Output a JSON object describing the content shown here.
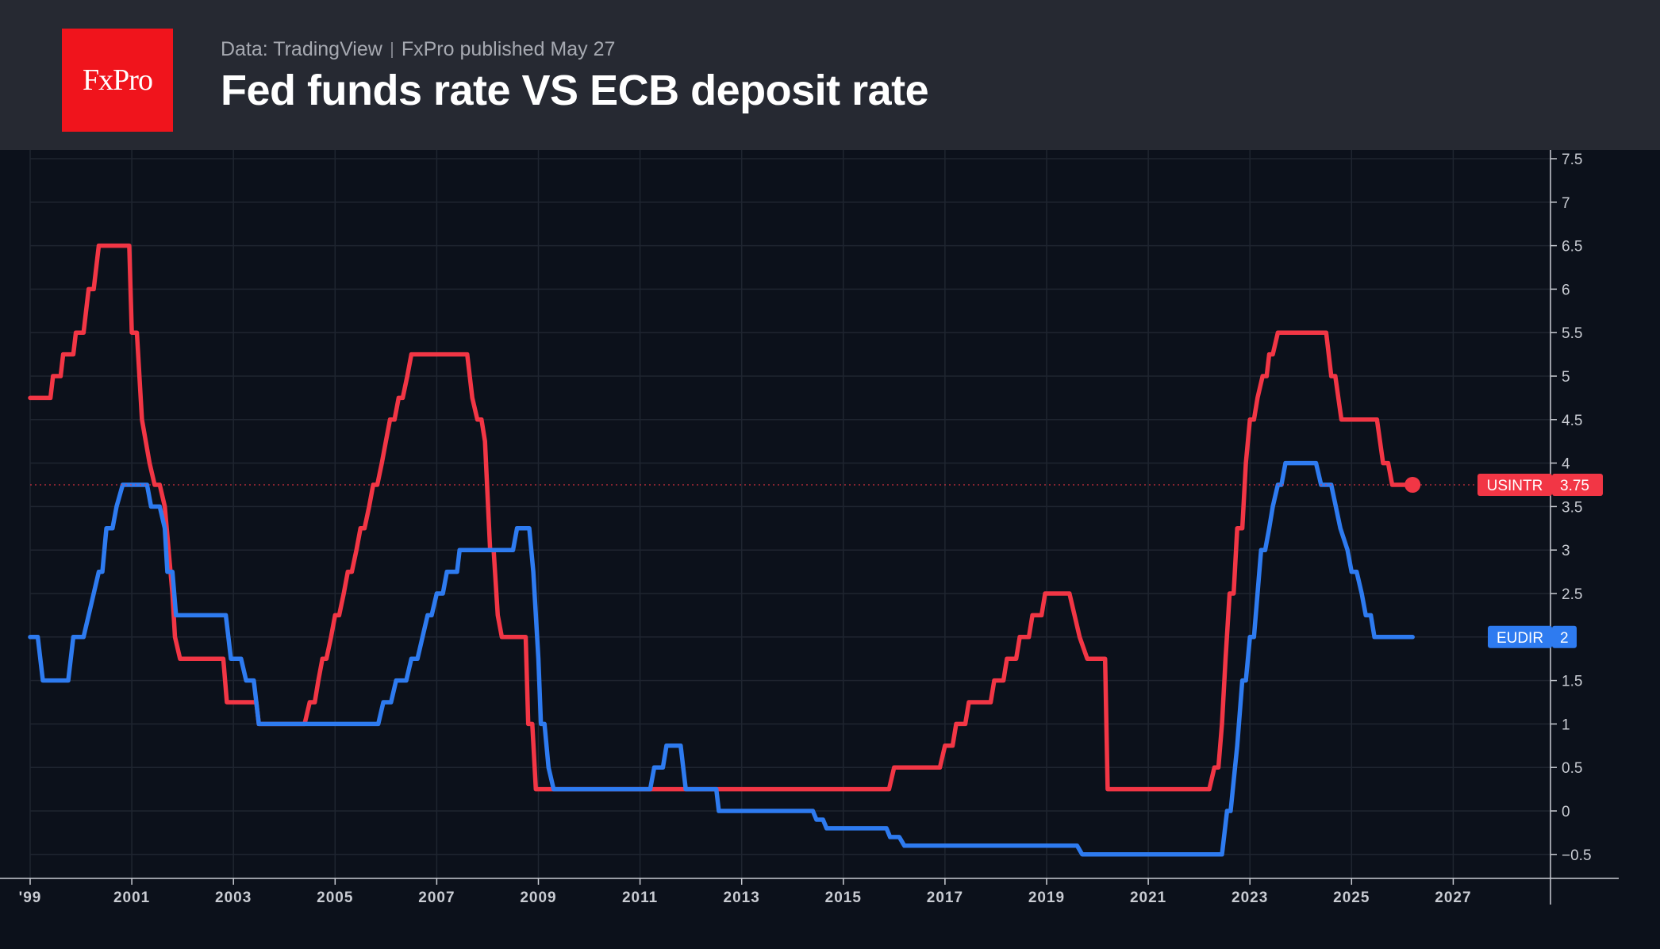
{
  "header": {
    "logo_text": "FxPro",
    "source": "Data: TradingView",
    "published": "FxPro published May 27",
    "title": "Fed funds rate VS ECB deposit rate"
  },
  "colors": {
    "background": "#0c111b",
    "header_bg": "#262932",
    "logo_bg": "#f0141c",
    "usintr": "#f23645",
    "eudir": "#2e7bf0"
  },
  "chart_data": {
    "type": "line",
    "title": "Fed funds rate VS ECB deposit rate",
    "x_ticks": [
      "'99",
      "2001",
      "2003",
      "2005",
      "2007",
      "2009",
      "2011",
      "2013",
      "2015",
      "2017",
      "2019",
      "2021",
      "2023",
      "2025",
      "2027"
    ],
    "y_ticks": [
      "7.5",
      "7",
      "6.5",
      "6",
      "5.5",
      "5",
      "4.5",
      "4",
      "3.5",
      "3",
      "2.5",
      "2",
      "1.5",
      "1",
      "0.5",
      "0",
      "−0.5"
    ],
    "xlim": [
      1999.0,
      2028.9
    ],
    "ylim": [
      -0.75,
      7.6
    ],
    "grid": true,
    "series": [
      {
        "name": "USINTR",
        "last_value": "3.75",
        "color": "#f23645",
        "points": [
          [
            1999.0,
            4.75
          ],
          [
            1999.4,
            4.75
          ],
          [
            1999.45,
            5.0
          ],
          [
            1999.6,
            5.0
          ],
          [
            1999.65,
            5.25
          ],
          [
            1999.85,
            5.25
          ],
          [
            1999.9,
            5.5
          ],
          [
            2000.05,
            5.5
          ],
          [
            2000.15,
            6.0
          ],
          [
            2000.25,
            6.0
          ],
          [
            2000.35,
            6.5
          ],
          [
            2000.95,
            6.5
          ],
          [
            2001.0,
            5.5
          ],
          [
            2001.1,
            5.5
          ],
          [
            2001.2,
            4.5
          ],
          [
            2001.35,
            4.0
          ],
          [
            2001.45,
            3.75
          ],
          [
            2001.55,
            3.75
          ],
          [
            2001.65,
            3.5
          ],
          [
            2001.8,
            2.5
          ],
          [
            2001.85,
            2.0
          ],
          [
            2001.95,
            1.75
          ],
          [
            2002.8,
            1.75
          ],
          [
            2002.87,
            1.25
          ],
          [
            2003.45,
            1.25
          ],
          [
            2003.5,
            1.0
          ],
          [
            2004.4,
            1.0
          ],
          [
            2004.5,
            1.25
          ],
          [
            2004.6,
            1.25
          ],
          [
            2004.67,
            1.5
          ],
          [
            2004.75,
            1.75
          ],
          [
            2004.83,
            1.75
          ],
          [
            2004.92,
            2.0
          ],
          [
            2005.0,
            2.25
          ],
          [
            2005.08,
            2.25
          ],
          [
            2005.17,
            2.5
          ],
          [
            2005.25,
            2.75
          ],
          [
            2005.33,
            2.75
          ],
          [
            2005.42,
            3.0
          ],
          [
            2005.5,
            3.25
          ],
          [
            2005.58,
            3.25
          ],
          [
            2005.67,
            3.5
          ],
          [
            2005.75,
            3.75
          ],
          [
            2005.83,
            3.75
          ],
          [
            2005.92,
            4.0
          ],
          [
            2006.0,
            4.25
          ],
          [
            2006.08,
            4.5
          ],
          [
            2006.17,
            4.5
          ],
          [
            2006.25,
            4.75
          ],
          [
            2006.33,
            4.75
          ],
          [
            2006.42,
            5.0
          ],
          [
            2006.5,
            5.25
          ],
          [
            2007.6,
            5.25
          ],
          [
            2007.7,
            4.75
          ],
          [
            2007.8,
            4.5
          ],
          [
            2007.88,
            4.5
          ],
          [
            2007.95,
            4.25
          ],
          [
            2008.05,
            3.0
          ],
          [
            2008.12,
            3.0
          ],
          [
            2008.2,
            2.25
          ],
          [
            2008.28,
            2.0
          ],
          [
            2008.75,
            2.0
          ],
          [
            2008.8,
            1.0
          ],
          [
            2008.88,
            1.0
          ],
          [
            2008.95,
            0.25
          ],
          [
            2015.9,
            0.25
          ],
          [
            2016.0,
            0.5
          ],
          [
            2016.9,
            0.5
          ],
          [
            2017.0,
            0.75
          ],
          [
            2017.15,
            0.75
          ],
          [
            2017.22,
            1.0
          ],
          [
            2017.4,
            1.0
          ],
          [
            2017.47,
            1.25
          ],
          [
            2017.9,
            1.25
          ],
          [
            2017.97,
            1.5
          ],
          [
            2018.15,
            1.5
          ],
          [
            2018.22,
            1.75
          ],
          [
            2018.4,
            1.75
          ],
          [
            2018.47,
            2.0
          ],
          [
            2018.65,
            2.0
          ],
          [
            2018.72,
            2.25
          ],
          [
            2018.9,
            2.25
          ],
          [
            2018.97,
            2.5
          ],
          [
            2019.45,
            2.5
          ],
          [
            2019.55,
            2.25
          ],
          [
            2019.65,
            2.0
          ],
          [
            2019.8,
            1.75
          ],
          [
            2020.15,
            1.75
          ],
          [
            2020.2,
            0.25
          ],
          [
            2022.2,
            0.25
          ],
          [
            2022.3,
            0.5
          ],
          [
            2022.38,
            0.5
          ],
          [
            2022.45,
            1.0
          ],
          [
            2022.52,
            1.75
          ],
          [
            2022.6,
            2.5
          ],
          [
            2022.68,
            2.5
          ],
          [
            2022.75,
            3.25
          ],
          [
            2022.85,
            3.25
          ],
          [
            2022.92,
            4.0
          ],
          [
            2023.0,
            4.5
          ],
          [
            2023.08,
            4.5
          ],
          [
            2023.15,
            4.75
          ],
          [
            2023.25,
            5.0
          ],
          [
            2023.33,
            5.0
          ],
          [
            2023.38,
            5.25
          ],
          [
            2023.45,
            5.25
          ],
          [
            2023.55,
            5.5
          ],
          [
            2024.5,
            5.5
          ],
          [
            2024.6,
            5.0
          ],
          [
            2024.68,
            5.0
          ],
          [
            2024.8,
            4.5
          ],
          [
            2025.5,
            4.5
          ],
          [
            2025.62,
            4.0
          ],
          [
            2025.72,
            4.0
          ],
          [
            2025.8,
            3.75
          ],
          [
            2026.2,
            3.75
          ]
        ]
      },
      {
        "name": "EUDIR",
        "last_value": "2",
        "color": "#2e7bf0",
        "points": [
          [
            1999.0,
            2.0
          ],
          [
            1999.15,
            2.0
          ],
          [
            1999.25,
            1.5
          ],
          [
            1999.75,
            1.5
          ],
          [
            1999.85,
            2.0
          ],
          [
            2000.05,
            2.0
          ],
          [
            2000.15,
            2.25
          ],
          [
            2000.25,
            2.5
          ],
          [
            2000.35,
            2.75
          ],
          [
            2000.42,
            2.75
          ],
          [
            2000.5,
            3.25
          ],
          [
            2000.62,
            3.25
          ],
          [
            2000.7,
            3.5
          ],
          [
            2000.82,
            3.75
          ],
          [
            2001.3,
            3.75
          ],
          [
            2001.38,
            3.5
          ],
          [
            2001.55,
            3.5
          ],
          [
            2001.65,
            3.25
          ],
          [
            2001.7,
            2.75
          ],
          [
            2001.8,
            2.75
          ],
          [
            2001.87,
            2.25
          ],
          [
            2002.85,
            2.25
          ],
          [
            2002.95,
            1.75
          ],
          [
            2003.15,
            1.75
          ],
          [
            2003.25,
            1.5
          ],
          [
            2003.4,
            1.5
          ],
          [
            2003.5,
            1.0
          ],
          [
            2005.85,
            1.0
          ],
          [
            2005.95,
            1.25
          ],
          [
            2006.1,
            1.25
          ],
          [
            2006.2,
            1.5
          ],
          [
            2006.4,
            1.5
          ],
          [
            2006.5,
            1.75
          ],
          [
            2006.62,
            1.75
          ],
          [
            2006.72,
            2.0
          ],
          [
            2006.82,
            2.25
          ],
          [
            2006.9,
            2.25
          ],
          [
            2007.0,
            2.5
          ],
          [
            2007.12,
            2.5
          ],
          [
            2007.2,
            2.75
          ],
          [
            2007.4,
            2.75
          ],
          [
            2007.45,
            3.0
          ],
          [
            2008.5,
            3.0
          ],
          [
            2008.58,
            3.25
          ],
          [
            2008.82,
            3.25
          ],
          [
            2008.9,
            2.75
          ],
          [
            2009.0,
            1.75
          ],
          [
            2009.05,
            1.0
          ],
          [
            2009.12,
            1.0
          ],
          [
            2009.2,
            0.5
          ],
          [
            2009.3,
            0.25
          ],
          [
            2011.2,
            0.25
          ],
          [
            2011.28,
            0.5
          ],
          [
            2011.45,
            0.5
          ],
          [
            2011.52,
            0.75
          ],
          [
            2011.8,
            0.75
          ],
          [
            2011.9,
            0.25
          ],
          [
            2012.5,
            0.25
          ],
          [
            2012.55,
            0.0
          ],
          [
            2014.4,
            0.0
          ],
          [
            2014.47,
            -0.1
          ],
          [
            2014.6,
            -0.1
          ],
          [
            2014.67,
            -0.2
          ],
          [
            2015.85,
            -0.2
          ],
          [
            2015.92,
            -0.3
          ],
          [
            2016.1,
            -0.3
          ],
          [
            2016.2,
            -0.4
          ],
          [
            2019.6,
            -0.4
          ],
          [
            2019.7,
            -0.5
          ],
          [
            2022.45,
            -0.5
          ],
          [
            2022.55,
            0.0
          ],
          [
            2022.62,
            0.0
          ],
          [
            2022.75,
            0.75
          ],
          [
            2022.85,
            1.5
          ],
          [
            2022.92,
            1.5
          ],
          [
            2023.0,
            2.0
          ],
          [
            2023.08,
            2.0
          ],
          [
            2023.15,
            2.5
          ],
          [
            2023.22,
            3.0
          ],
          [
            2023.3,
            3.0
          ],
          [
            2023.38,
            3.25
          ],
          [
            2023.45,
            3.5
          ],
          [
            2023.55,
            3.75
          ],
          [
            2023.62,
            3.75
          ],
          [
            2023.7,
            4.0
          ],
          [
            2024.3,
            4.0
          ],
          [
            2024.4,
            3.75
          ],
          [
            2024.6,
            3.75
          ],
          [
            2024.78,
            3.25
          ],
          [
            2024.92,
            3.0
          ],
          [
            2025.0,
            2.75
          ],
          [
            2025.1,
            2.75
          ],
          [
            2025.2,
            2.5
          ],
          [
            2025.28,
            2.25
          ],
          [
            2025.38,
            2.25
          ],
          [
            2025.45,
            2.0
          ],
          [
            2026.2,
            2.0
          ]
        ]
      }
    ]
  }
}
